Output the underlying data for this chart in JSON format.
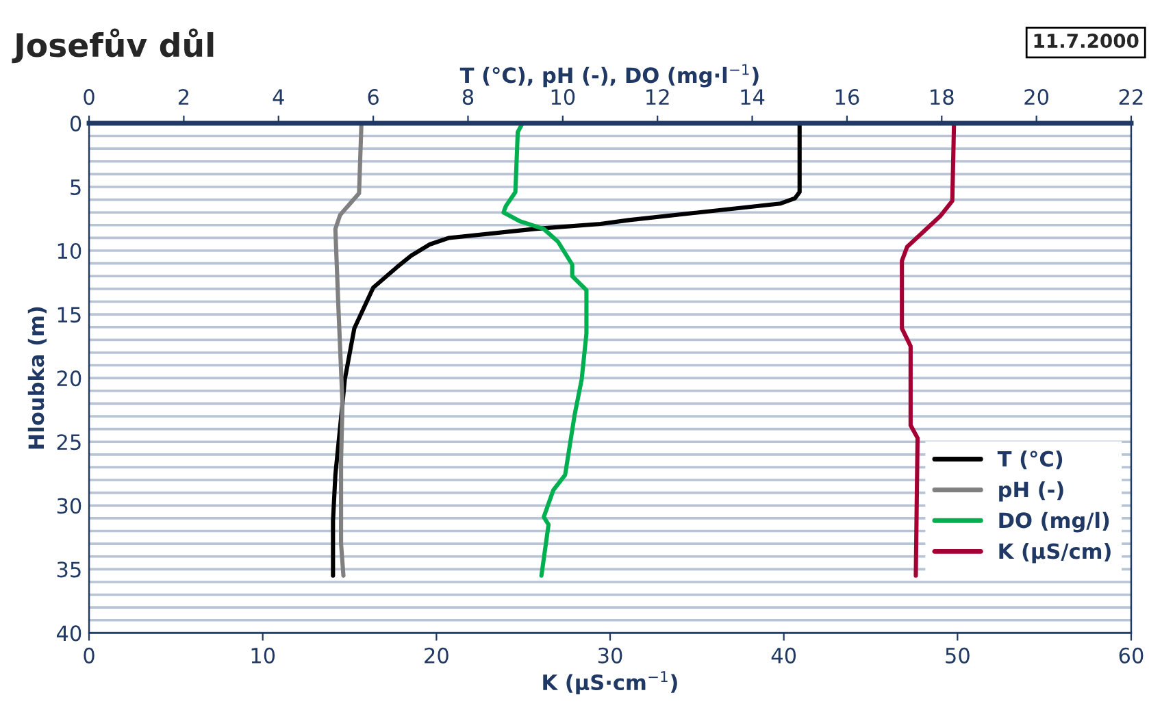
{
  "chart_data": {
    "type": "line",
    "title": "Josefův důl",
    "annotations": [
      "11.7.2000"
    ],
    "xlabel": "K (µS·cm$^{−1}$)",
    "x2label": "T (°C), pH (-), DO (mg·l$^{−1}$)",
    "ylabel": "Hloubka (m)",
    "xlim": [
      0,
      60
    ],
    "xticks": [
      0,
      10,
      20,
      30,
      40,
      50,
      60
    ],
    "x2lim": [
      0,
      22
    ],
    "x2ticks": [
      0,
      2,
      4,
      6,
      8,
      10,
      12,
      14,
      16,
      18,
      20,
      22
    ],
    "ylim": [
      40,
      0
    ],
    "yticks": [
      0,
      {
        "value": 1,
        "label": null
      },
      {
        "value": 2,
        "label": null
      },
      {
        "value": 3,
        "label": null
      },
      {
        "value": 4,
        "label": null
      },
      5,
      {
        "value": 6,
        "label": null
      },
      {
        "value": 7,
        "label": null
      },
      {
        "value": 8,
        "label": null
      },
      {
        "value": 9,
        "label": null
      },
      10,
      {
        "value": 11,
        "label": null
      },
      {
        "value": 12,
        "label": null
      },
      {
        "value": 13,
        "label": null
      },
      {
        "value": 14,
        "label": null
      },
      15,
      {
        "value": 16,
        "label": null
      },
      {
        "value": 17,
        "label": null
      },
      {
        "value": 18,
        "label": null
      },
      {
        "value": 19,
        "label": null
      },
      20,
      {
        "value": 21,
        "label": null
      },
      {
        "value": 22,
        "label": null
      },
      {
        "value": 23,
        "label": null
      },
      {
        "value": 24,
        "label": null
      },
      25,
      {
        "value": 26,
        "label": null
      },
      {
        "value": 27,
        "label": null
      },
      {
        "value": 28,
        "label": null
      },
      {
        "value": 29,
        "label": null
      },
      30,
      {
        "value": 31,
        "label": null
      },
      {
        "value": 32,
        "label": null
      },
      {
        "value": 33,
        "label": null
      },
      {
        "value": 34,
        "label": null
      },
      35,
      {
        "value": 36,
        "label": null
      },
      {
        "value": 37,
        "label": null
      },
      {
        "value": 38,
        "label": null
      },
      {
        "value": 39,
        "label": null
      },
      40
    ],
    "grid": "y",
    "legend": "bottom right",
    "marker": "none",
    "line_style": "solid",
    "series": [
      {
        "name": "T (°C)",
        "color": "#000000",
        "axis": "x2",
        "x": [
          15.0,
          15.0,
          14.9,
          14.6,
          11.4,
          10.8,
          9.4,
          7.6,
          7.2,
          6.8,
          6.5,
          6.0,
          5.6,
          5.4,
          5.35,
          5.2,
          5.15,
          5.15
        ],
        "values": [
          0,
          5.4,
          5.9,
          6.3,
          7.6,
          7.9,
          8.3,
          9.0,
          9.5,
          10.4,
          11.3,
          12.9,
          16.1,
          20.1,
          22.0,
          27.6,
          31.2,
          35.5
        ]
      },
      {
        "name": "pH (-)",
        "color": "#808080",
        "axis": "x2",
        "x": [
          5.75,
          5.7,
          5.3,
          5.2,
          5.27,
          5.35,
          5.32,
          5.32,
          5.37
        ],
        "values": [
          0,
          5.5,
          7.2,
          8.3,
          15.0,
          22.0,
          26.5,
          33.0,
          35.5
        ]
      },
      {
        "name": "DO (mg/l)",
        "color": "#00b050",
        "axis": "x2",
        "x": [
          9.15,
          9.05,
          9.0,
          8.8,
          8.75,
          9.1,
          9.6,
          9.9,
          10.2,
          10.2,
          10.5,
          10.5,
          10.4,
          10.25,
          10.05,
          9.8,
          9.6,
          9.7,
          9.55
        ],
        "values": [
          0,
          0.7,
          5.4,
          6.5,
          7.0,
          7.7,
          8.3,
          9.3,
          11.1,
          12.0,
          13.1,
          16.5,
          20.1,
          22.9,
          27.6,
          28.8,
          30.9,
          31.5,
          35.5
        ]
      },
      {
        "name": "K (µS/cm)",
        "color": "#a50034",
        "x": [
          49.8,
          49.7,
          49.0,
          47.1,
          46.8,
          46.8,
          47.3,
          47.3,
          47.7,
          47.6
        ],
        "values": [
          0,
          6.1,
          7.3,
          9.7,
          10.8,
          16.1,
          17.5,
          23.7,
          24.7,
          35.5
        ]
      }
    ]
  }
}
